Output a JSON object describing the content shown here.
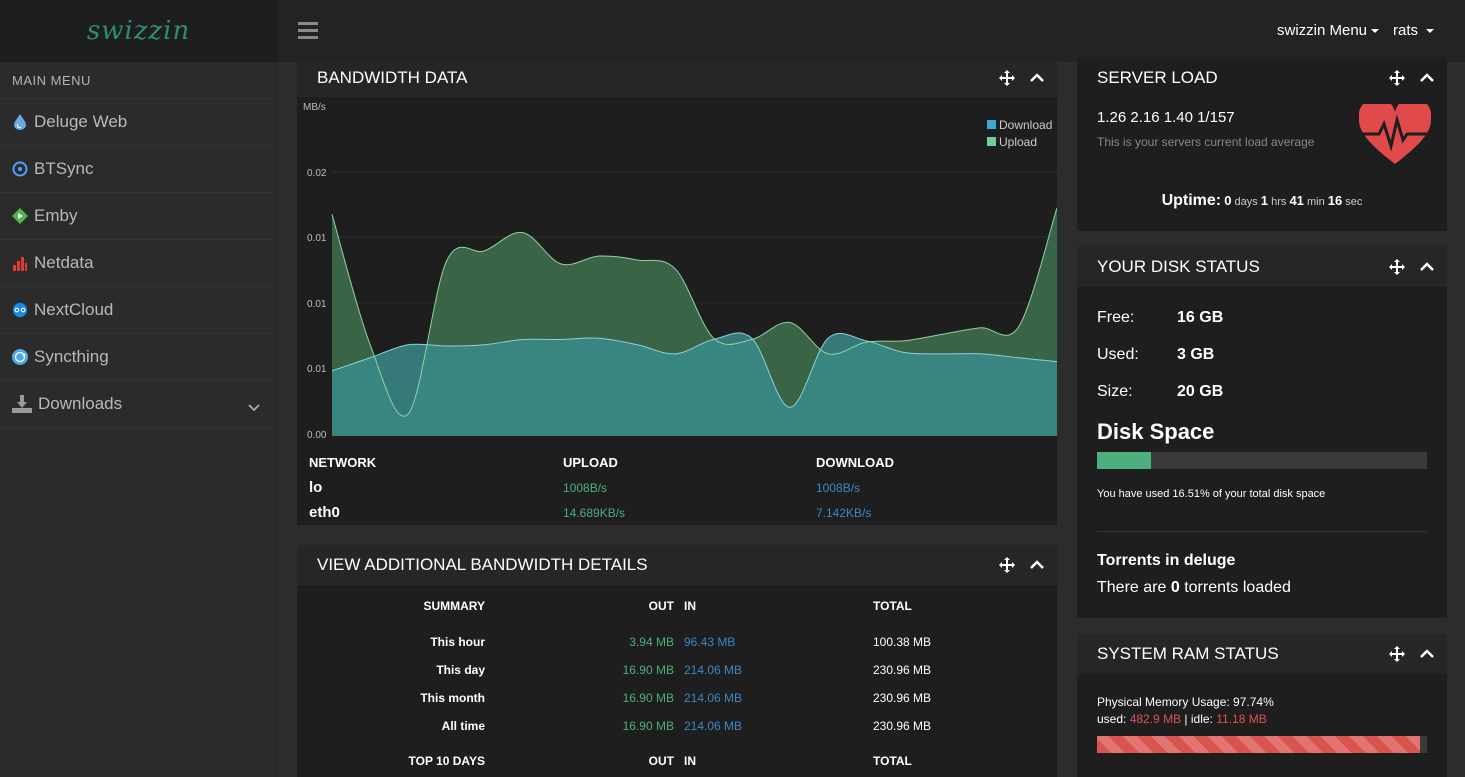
{
  "brand": {
    "logo_text": "swizzin"
  },
  "topnav": {
    "menu_label": "swizzin Menu",
    "user_label": "rats"
  },
  "sidebar": {
    "header": "MAIN MENU",
    "items": [
      {
        "label": "Deluge Web",
        "icon": "deluge-icon"
      },
      {
        "label": "BTSync",
        "icon": "btsync-icon"
      },
      {
        "label": "Emby",
        "icon": "emby-icon"
      },
      {
        "label": "Netdata",
        "icon": "netdata-icon"
      },
      {
        "label": "NextCloud",
        "icon": "nextcloud-icon"
      },
      {
        "label": "Syncthing",
        "icon": "syncthing-icon"
      },
      {
        "label": "Downloads",
        "icon": "download-icon"
      }
    ]
  },
  "bandwidth": {
    "title": "BANDWIDTH DATA",
    "table": {
      "headers": [
        "NETWORK",
        "UPLOAD",
        "DOWNLOAD"
      ],
      "rows": [
        {
          "network": "lo",
          "upload": "1008B/s",
          "download": "1008B/s"
        },
        {
          "network": "eth0",
          "upload": "14.689KB/s",
          "download": "7.142KB/s"
        }
      ]
    }
  },
  "chart_data": {
    "type": "area",
    "ylabel": "MB/s",
    "yticks": [
      "0.00",
      "0.01",
      "0.01",
      "0.01",
      "0.02"
    ],
    "ylim": [
      0,
      0.025
    ],
    "x_count": 20,
    "series": [
      {
        "name": "Download",
        "color": "#3fa7d6",
        "values": [
          0.005,
          0.006,
          0.007,
          0.0069,
          0.007,
          0.0074,
          0.0074,
          0.0075,
          0.007,
          0.0063,
          0.0074,
          0.0075,
          0.0022,
          0.0075,
          0.0073,
          0.0064,
          0.0063,
          0.0063,
          0.006,
          0.0057
        ]
      },
      {
        "name": "Upload",
        "color": "#4f9c64",
        "values": [
          0.017,
          0.007,
          0.0017,
          0.0134,
          0.0142,
          0.0156,
          0.0132,
          0.0138,
          0.0135,
          0.0128,
          0.0075,
          0.0074,
          0.0087,
          0.0063,
          0.0072,
          0.0073,
          0.0078,
          0.0083,
          0.0084,
          0.0175
        ]
      }
    ],
    "grid": true,
    "legend": "top-right"
  },
  "additional": {
    "title": "VIEW ADDITIONAL BANDWIDTH DETAILS",
    "headers": [
      "SUMMARY",
      "OUT",
      "IN",
      "TOTAL"
    ],
    "rows": [
      {
        "label": "This hour",
        "out": "3.94 MB",
        "in": "96.43 MB",
        "total": "100.38 MB"
      },
      {
        "label": "This day",
        "out": "16.90 MB",
        "in": "214.06 MB",
        "total": "230.96 MB"
      },
      {
        "label": "This month",
        "out": "16.90 MB",
        "in": "214.06 MB",
        "total": "230.96 MB"
      },
      {
        "label": "All time",
        "out": "16.90 MB",
        "in": "214.06 MB",
        "total": "230.96 MB"
      }
    ],
    "footer_headers": [
      "TOP 10 DAYS",
      "OUT",
      "IN",
      "TOTAL"
    ]
  },
  "server_load": {
    "title": "SERVER LOAD",
    "load": "1.26 2.16 1.40 1/157",
    "subtitle": "This is your servers current load average",
    "uptime_label": "Uptime:",
    "uptime_days": "0",
    "uptime_days_unit": "days",
    "uptime_hrs": "1",
    "uptime_hrs_unit": "hrs",
    "uptime_min": "41",
    "uptime_min_unit": "min",
    "uptime_sec": "16",
    "uptime_sec_unit": "sec"
  },
  "disk": {
    "title": "YOUR DISK STATUS",
    "free_label": "Free:",
    "free_value": "16 GB",
    "used_label": "Used:",
    "used_value": "3 GB",
    "size_label": "Size:",
    "size_value": "20 GB",
    "space_title": "Disk Space",
    "used_percent": 16.51,
    "used_text": "You have used 16.51% of your total disk space",
    "torrents_title": "Torrents in deluge",
    "torrents_pre": "There are",
    "torrents_count": "0",
    "torrents_post": "torrents loaded"
  },
  "ram": {
    "title": "SYSTEM RAM STATUS",
    "usage_text": "Physical Memory Usage: 97.74%",
    "used_label": "used:",
    "used_value": "482.9 MB",
    "sep": "|",
    "idle_label": "idle:",
    "idle_value": "11.18 MB",
    "used_percent": 97.74
  }
}
